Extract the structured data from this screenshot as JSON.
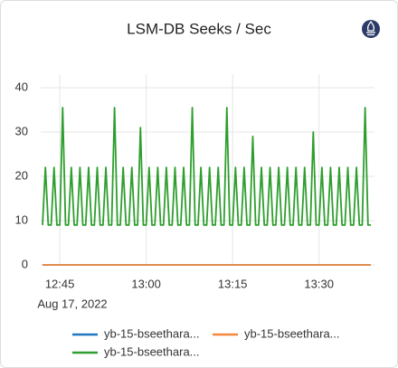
{
  "chart_data": {
    "type": "line",
    "title": "LSM-DB Seeks / Sec",
    "x": [
      762,
      762.5,
      763,
      763.5,
      764,
      764.5,
      765,
      765.5,
      766,
      766.5,
      767,
      767.5,
      768,
      768.5,
      769,
      769.5,
      770,
      770.5,
      771,
      771.5,
      772,
      772.5,
      773,
      773.5,
      774,
      774.5,
      775,
      775.5,
      776,
      776.5,
      777,
      777.5,
      778,
      778.5,
      779,
      779.5,
      780,
      780.5,
      781,
      781.5,
      782,
      782.5,
      783,
      783.5,
      784,
      784.5,
      785,
      785.5,
      786,
      786.5,
      787,
      787.5,
      788,
      788.5,
      789,
      789.5,
      790,
      790.5,
      791,
      791.5,
      792,
      792.5,
      793,
      793.5,
      794,
      794.5,
      795,
      795.5,
      796,
      796.5,
      797,
      797.5,
      798,
      798.5,
      799,
      799.5,
      800,
      800.5,
      801,
      801.5,
      802,
      802.5,
      803,
      803.5,
      804,
      804.5,
      805,
      805.5,
      806,
      806.5,
      807,
      807.5,
      808,
      808.5,
      809,
      809.5,
      810,
      810.5,
      811,
      811.5,
      812,
      812.5,
      813,
      813.5,
      814,
      814.5,
      815,
      815.5,
      816,
      816.5,
      817,
      817.5,
      818,
      818.5,
      819
    ],
    "x_sublabel": "Aug 17, 2022",
    "series": [
      {
        "name": "yb-15-bseethara...",
        "color": "#1f78c1",
        "values": [
          0,
          0,
          0,
          0,
          0,
          0,
          0,
          0,
          0,
          0,
          0,
          0,
          0,
          0,
          0,
          0,
          0,
          0,
          0,
          0,
          0,
          0,
          0,
          0,
          0,
          0,
          0,
          0,
          0,
          0,
          0,
          0,
          0,
          0,
          0,
          0,
          0,
          0,
          0,
          0,
          0,
          0,
          0,
          0,
          0,
          0,
          0,
          0,
          0,
          0,
          0,
          0,
          0,
          0,
          0,
          0,
          0,
          0,
          0,
          0,
          0,
          0,
          0,
          0,
          0,
          0,
          0,
          0,
          0,
          0,
          0,
          0,
          0,
          0,
          0,
          0,
          0,
          0,
          0,
          0,
          0,
          0,
          0,
          0,
          0,
          0,
          0,
          0,
          0,
          0,
          0,
          0,
          0,
          0,
          0,
          0,
          0,
          0,
          0,
          0,
          0,
          0,
          0,
          0,
          0,
          0,
          0,
          0,
          0,
          0,
          0,
          0,
          0,
          0,
          0
        ]
      },
      {
        "name": "yb-15-bseethara...",
        "color": "#f2883a",
        "values": [
          0,
          0,
          0,
          0,
          0,
          0,
          0,
          0,
          0,
          0,
          0,
          0,
          0,
          0,
          0,
          0,
          0,
          0,
          0,
          0,
          0,
          0,
          0,
          0,
          0,
          0,
          0,
          0,
          0,
          0,
          0,
          0,
          0,
          0,
          0,
          0,
          0,
          0,
          0,
          0,
          0,
          0,
          0,
          0,
          0,
          0,
          0,
          0,
          0,
          0,
          0,
          0,
          0,
          0,
          0,
          0,
          0,
          0,
          0,
          0,
          0,
          0,
          0,
          0,
          0,
          0,
          0,
          0,
          0,
          0,
          0,
          0,
          0,
          0,
          0,
          0,
          0,
          0,
          0,
          0,
          0,
          0,
          0,
          0,
          0,
          0,
          0,
          0,
          0,
          0,
          0,
          0,
          0,
          0,
          0,
          0,
          0,
          0,
          0,
          0,
          0,
          0,
          0,
          0,
          0,
          0,
          0,
          0,
          0,
          0,
          0,
          0,
          0,
          0,
          0
        ]
      },
      {
        "name": "yb-15-bseethara...",
        "color": "#2e9e2e",
        "values": [
          9,
          22,
          9,
          9,
          22,
          9,
          9,
          35.5,
          9,
          9,
          22,
          9,
          9,
          22,
          9,
          9,
          22,
          9,
          9,
          22,
          9,
          9,
          22,
          9,
          9,
          35.5,
          9,
          9,
          22,
          9,
          9,
          22,
          9,
          9,
          31,
          9,
          9,
          22,
          9,
          9,
          22,
          9,
          9,
          22,
          9,
          9,
          22,
          9,
          9,
          22,
          9,
          9,
          35.5,
          9,
          9,
          22,
          9,
          9,
          22,
          9,
          9,
          22,
          9,
          9,
          35.5,
          9,
          9,
          22,
          9,
          9,
          22,
          9,
          9,
          29,
          9,
          9,
          22,
          9,
          9,
          22,
          9,
          9,
          22,
          9,
          9,
          22,
          9,
          9,
          22,
          9,
          9,
          22,
          9,
          9,
          30,
          9,
          9,
          22,
          9,
          9,
          22,
          9,
          9,
          22,
          9,
          9,
          22,
          9,
          9,
          22,
          9,
          9,
          35.5,
          9,
          9
        ]
      }
    ],
    "xlim": [
      762,
      819
    ],
    "xticks": [
      {
        "value": 765,
        "label": "12:45"
      },
      {
        "value": 780,
        "label": "13:00"
      },
      {
        "value": 795,
        "label": "13:15"
      },
      {
        "value": 810,
        "label": "13:30"
      }
    ],
    "ylim": [
      0,
      40
    ],
    "yticks": [
      0,
      10,
      20,
      30,
      40
    ],
    "grid": true
  }
}
